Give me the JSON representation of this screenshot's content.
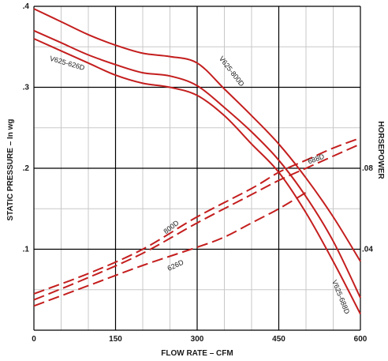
{
  "chart_data": {
    "type": "line",
    "xlabel": "FLOW RATE – CFM",
    "ylabel": "STATIC PRESSURE – In wg",
    "y2label": "HORSEPOWER",
    "xlim": [
      0,
      600
    ],
    "ylim": [
      0,
      0.4
    ],
    "y2lim": [
      0,
      0.16
    ],
    "grid": true,
    "x_ticks": [
      {
        "value": 0,
        "label": "0"
      },
      {
        "value": 150,
        "label": "150"
      },
      {
        "value": 300,
        "label": "300"
      },
      {
        "value": 450,
        "label": "450"
      },
      {
        "value": 600,
        "label": "600"
      }
    ],
    "y_ticks": [
      {
        "value": 0.4,
        "label": ".4"
      },
      {
        "value": 0.3,
        "label": ".3"
      },
      {
        "value": 0.2,
        "label": ".2"
      },
      {
        "value": 0.1,
        "label": ".1"
      }
    ],
    "y2_ticks": [
      {
        "value": 0.08,
        "label": ".08"
      },
      {
        "value": 0.04,
        "label": ".04"
      }
    ],
    "colors": {
      "curve": "#c41e1e",
      "grid_major": "#000000",
      "grid_minor": "#c8c8c8"
    },
    "pressure_series": [
      {
        "name": "V625-800D",
        "label": "V625-800D",
        "axis": "left",
        "x": [
          0,
          50,
          100,
          150,
          200,
          250,
          300,
          350,
          400,
          450,
          500,
          550,
          600
        ],
        "y": [
          0.397,
          0.381,
          0.365,
          0.352,
          0.342,
          0.338,
          0.33,
          0.298,
          0.265,
          0.23,
          0.188,
          0.14,
          0.085
        ]
      },
      {
        "name": "V625-626D",
        "label": "V625-626D",
        "axis": "left",
        "x": [
          0,
          50,
          100,
          150,
          200,
          250,
          300,
          350,
          400,
          450,
          500,
          550,
          600
        ],
        "y": [
          0.37,
          0.355,
          0.34,
          0.328,
          0.318,
          0.314,
          0.302,
          0.275,
          0.245,
          0.21,
          0.165,
          0.11,
          0.04
        ]
      },
      {
        "name": "V625-688D",
        "label": "V625-688D",
        "axis": "left",
        "x": [
          0,
          50,
          100,
          150,
          200,
          250,
          300,
          350,
          400,
          450,
          500,
          550,
          600
        ],
        "y": [
          0.36,
          0.345,
          0.33,
          0.315,
          0.305,
          0.3,
          0.29,
          0.265,
          0.23,
          0.195,
          0.145,
          0.085,
          0.02
        ]
      }
    ],
    "power_series": [
      {
        "name": "688D",
        "label": "688D",
        "axis": "right",
        "x": [
          0,
          100,
          200,
          300,
          400,
          450,
          500,
          550,
          600
        ],
        "y": [
          0.018,
          0.028,
          0.04,
          0.056,
          0.07,
          0.078,
          0.084,
          0.09,
          0.095
        ]
      },
      {
        "name": "800D",
        "label": "800D",
        "axis": "right",
        "x": [
          0,
          100,
          200,
          300,
          400,
          450,
          500,
          550,
          600
        ],
        "y": [
          0.015,
          0.026,
          0.038,
          0.053,
          0.067,
          0.074,
          0.08,
          0.086,
          0.092
        ]
      },
      {
        "name": "626D",
        "label": "626D",
        "axis": "right",
        "x": [
          0,
          100,
          200,
          300,
          350,
          400,
          450,
          500
        ],
        "y": [
          0.012,
          0.022,
          0.032,
          0.041,
          0.046,
          0.053,
          0.06,
          0.068
        ]
      }
    ]
  }
}
